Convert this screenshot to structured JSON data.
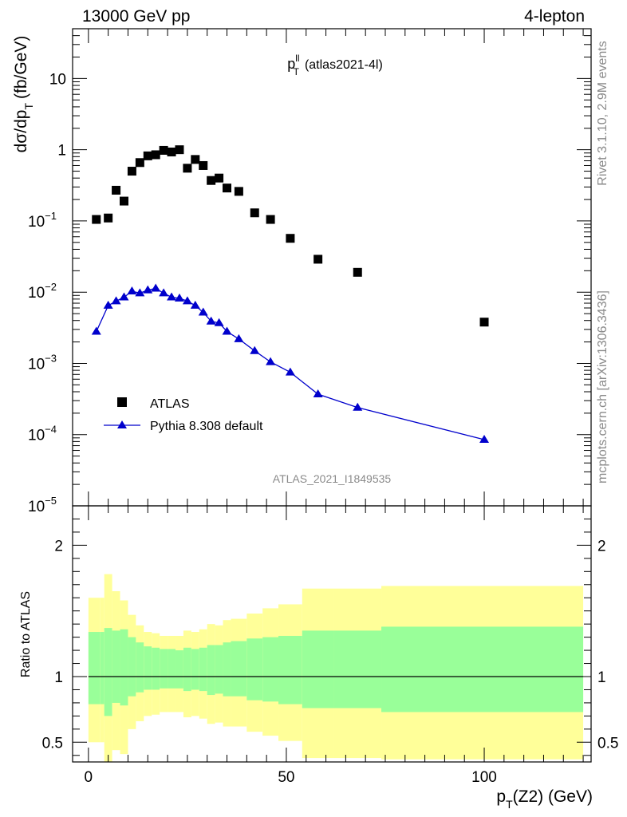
{
  "header": {
    "left": "13000 GeV pp",
    "right": "4-lepton"
  },
  "side": {
    "top": "Rivet 3.1.10,  2.9M events",
    "bottom": "mcplots.cern.ch [arXiv:1306.3436]"
  },
  "chart_data": [
    {
      "type": "scatter",
      "title": "p_T^ll (atlas2021-4l)",
      "title_parts": {
        "main": "p",
        "sup": "ll",
        "sub": "T",
        "suffix": "(atlas2021-4l)"
      },
      "ylabel": "dσ/dp_T (fb/GeV)",
      "ylabel_parts": {
        "main": "dσ/dp",
        "sub": "T",
        "suffix": "(fb/GeV)"
      },
      "yscale": "log",
      "ylim": [
        1e-05,
        50
      ],
      "xlim": [
        -4,
        127
      ],
      "y_ticks": [
        {
          "value": 1e-05,
          "mant": "10",
          "exp": "−5"
        },
        {
          "value": 0.0001,
          "mant": "10",
          "exp": "−4"
        },
        {
          "value": 0.001,
          "mant": "10",
          "exp": "−3"
        },
        {
          "value": 0.01,
          "mant": "10",
          "exp": "−2"
        },
        {
          "value": 0.1,
          "mant": "10",
          "exp": "−1"
        },
        {
          "value": 1,
          "mant": "1",
          "exp": ""
        },
        {
          "value": 10,
          "mant": "10",
          "exp": ""
        }
      ],
      "watermark": "ATLAS_2021_I1849535",
      "legend_position": "lower-left",
      "series": [
        {
          "name": "ATLAS",
          "marker": "square",
          "color": "#000000",
          "x": [
            2,
            5,
            7,
            9,
            11,
            13,
            15,
            17,
            19,
            21,
            23,
            25,
            27,
            29,
            31,
            33,
            35,
            38,
            42,
            46,
            51,
            58,
            68,
            100
          ],
          "y": [
            0.105,
            0.11,
            0.27,
            0.19,
            0.5,
            0.66,
            0.82,
            0.85,
            0.98,
            0.93,
            1.0,
            0.55,
            0.73,
            0.6,
            0.37,
            0.4,
            0.29,
            0.26,
            0.13,
            0.105,
            0.057,
            0.029,
            0.019,
            0.0038
          ]
        },
        {
          "name": "Pythia 8.308 default",
          "marker": "triangle",
          "color": "#0000cc",
          "x": [
            2,
            5,
            7,
            9,
            11,
            13,
            15,
            17,
            19,
            21,
            23,
            25,
            27,
            29,
            31,
            33,
            35,
            38,
            42,
            46,
            51,
            58,
            68,
            100
          ],
          "y": [
            0.0028,
            0.0065,
            0.0075,
            0.0085,
            0.0103,
            0.0097,
            0.0107,
            0.0113,
            0.0097,
            0.0085,
            0.0082,
            0.0075,
            0.0065,
            0.0052,
            0.0039,
            0.0037,
            0.0028,
            0.0022,
            0.0015,
            0.00105,
            0.00075,
            0.00037,
            0.00024,
            8.5e-05
          ]
        }
      ]
    },
    {
      "type": "area",
      "ylabel": "Ratio to ATLAS",
      "xlabel": "p_T(Z2) (GeV)",
      "xlabel_parts": {
        "main": "p",
        "sub": "T",
        "suffix": "(Z2) (GeV)"
      },
      "ylim": [
        0.35,
        2.3
      ],
      "xlim": [
        -4,
        127
      ],
      "x_ticks": [
        0,
        50,
        100
      ],
      "y_ticks": [
        0.5,
        1,
        2
      ],
      "reference_line": 1,
      "band_colors": {
        "outer": "#ffff99",
        "inner": "#99ff99"
      },
      "bands": [
        {
          "x0": 0,
          "x1": 3,
          "outer": [
            0.5,
            1.6
          ],
          "inner": [
            0.79,
            1.34
          ]
        },
        {
          "x0": 3,
          "x1": 4,
          "outer": [
            0.5,
            1.6
          ],
          "inner": [
            0.79,
            1.34
          ]
        },
        {
          "x0": 4,
          "x1": 6,
          "outer": [
            0.32,
            1.78
          ],
          "inner": [
            0.7,
            1.37
          ]
        },
        {
          "x0": 6,
          "x1": 8,
          "outer": [
            0.44,
            1.65
          ],
          "inner": [
            0.8,
            1.35
          ]
        },
        {
          "x0": 8,
          "x1": 10,
          "outer": [
            0.41,
            1.58
          ],
          "inner": [
            0.78,
            1.36
          ]
        },
        {
          "x0": 10,
          "x1": 12,
          "outer": [
            0.6,
            1.47
          ],
          "inner": [
            0.85,
            1.3
          ]
        },
        {
          "x0": 12,
          "x1": 14,
          "outer": [
            0.66,
            1.39
          ],
          "inner": [
            0.88,
            1.26
          ]
        },
        {
          "x0": 14,
          "x1": 16,
          "outer": [
            0.7,
            1.34
          ],
          "inner": [
            0.9,
            1.23
          ]
        },
        {
          "x0": 16,
          "x1": 18,
          "outer": [
            0.71,
            1.33
          ],
          "inner": [
            0.9,
            1.22
          ]
        },
        {
          "x0": 18,
          "x1": 20,
          "outer": [
            0.73,
            1.31
          ],
          "inner": [
            0.91,
            1.21
          ]
        },
        {
          "x0": 20,
          "x1": 22,
          "outer": [
            0.73,
            1.31
          ],
          "inner": [
            0.91,
            1.21
          ]
        },
        {
          "x0": 22,
          "x1": 24,
          "outer": [
            0.73,
            1.31
          ],
          "inner": [
            0.91,
            1.2
          ]
        },
        {
          "x0": 24,
          "x1": 26,
          "outer": [
            0.69,
            1.35
          ],
          "inner": [
            0.89,
            1.22
          ]
        },
        {
          "x0": 26,
          "x1": 28,
          "outer": [
            0.7,
            1.34
          ],
          "inner": [
            0.9,
            1.21
          ]
        },
        {
          "x0": 28,
          "x1": 30,
          "outer": [
            0.68,
            1.36
          ],
          "inner": [
            0.89,
            1.22
          ]
        },
        {
          "x0": 30,
          "x1": 32,
          "outer": [
            0.64,
            1.4
          ],
          "inner": [
            0.86,
            1.24
          ]
        },
        {
          "x0": 32,
          "x1": 34,
          "outer": [
            0.65,
            1.39
          ],
          "inner": [
            0.87,
            1.24
          ]
        },
        {
          "x0": 34,
          "x1": 36,
          "outer": [
            0.62,
            1.43
          ],
          "inner": [
            0.85,
            1.26
          ]
        },
        {
          "x0": 36,
          "x1": 40,
          "outer": [
            0.62,
            1.44
          ],
          "inner": [
            0.85,
            1.27
          ]
        },
        {
          "x0": 40,
          "x1": 44,
          "outer": [
            0.58,
            1.48
          ],
          "inner": [
            0.82,
            1.29
          ]
        },
        {
          "x0": 44,
          "x1": 48,
          "outer": [
            0.55,
            1.52
          ],
          "inner": [
            0.81,
            1.3
          ]
        },
        {
          "x0": 48,
          "x1": 54,
          "outer": [
            0.51,
            1.55
          ],
          "inner": [
            0.79,
            1.31
          ]
        },
        {
          "x0": 54,
          "x1": 62,
          "outer": [
            0.38,
            1.67
          ],
          "inner": [
            0.76,
            1.35
          ]
        },
        {
          "x0": 62,
          "x1": 74,
          "outer": [
            0.38,
            1.67
          ],
          "inner": [
            0.76,
            1.35
          ]
        },
        {
          "x0": 74,
          "x1": 125,
          "outer": [
            0.37,
            1.69
          ],
          "inner": [
            0.73,
            1.38
          ]
        }
      ]
    }
  ]
}
